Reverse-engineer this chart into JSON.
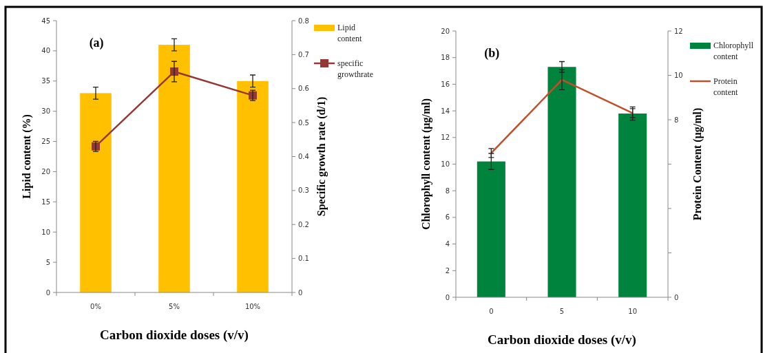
{
  "chart_data": [
    {
      "type": "bar",
      "annotations": [
        "(a)"
      ],
      "xlabel": "Carbon dioxide doses (v/v)",
      "ylabel": "Lipid content (%)",
      "y2label": "Specific growth rate (d/1)",
      "categories": [
        "0%",
        "5%",
        "10%"
      ],
      "legend": "right",
      "ylim": [
        0,
        45
      ],
      "yticks": [
        0,
        5,
        10,
        15,
        20,
        25,
        30,
        35,
        40,
        45
      ],
      "y2lim": [
        0,
        0.8
      ],
      "y2ticks": [
        0,
        0.1,
        0.2,
        0.3,
        0.4,
        0.5,
        0.6,
        0.7,
        0.8
      ],
      "series": [
        {
          "name": "Lipid content",
          "color": "#ffc000",
          "values": [
            33,
            41,
            35
          ],
          "errors": [
            1,
            1,
            1
          ]
        },
        {
          "name": "specific growthrate",
          "type": "line",
          "axis": "y2",
          "color": "#953735",
          "marker": "square",
          "values": [
            0.43,
            0.65,
            0.58
          ],
          "errors": [
            0.015,
            0.03,
            0.015
          ]
        }
      ]
    },
    {
      "type": "bar",
      "annotations": [
        "(b)"
      ],
      "xlabel": "Carbon dioxide doses (v/v)",
      "ylabel": "Chlorophyll content (µg/ml)",
      "y2label": "Protein Content (µg/ml)",
      "categories": [
        "0",
        "5",
        "10"
      ],
      "legend": "right",
      "ylim": [
        0,
        20
      ],
      "yticks": [
        0,
        2,
        4,
        6,
        8,
        10,
        12,
        14,
        16,
        18,
        20
      ],
      "y2lim": [
        0,
        12
      ],
      "y2ticks": [
        0,
        {
          "value": 2,
          "label": null
        },
        {
          "value": 4,
          "label": null
        },
        {
          "value": 6,
          "label": null
        },
        8,
        10,
        12
      ],
      "series": [
        {
          "name": "Chlorophyll content",
          "color": "#00843d",
          "values": [
            10.2,
            17.3,
            13.8
          ],
          "errors": [
            0.6,
            0.4,
            0.5
          ]
        },
        {
          "name": "Protein content",
          "type": "line",
          "axis": "y2",
          "color": "#c0502a",
          "values": [
            6.5,
            9.8,
            8.3
          ],
          "errors": [
            0.2,
            0.45,
            0.2
          ]
        }
      ]
    }
  ]
}
